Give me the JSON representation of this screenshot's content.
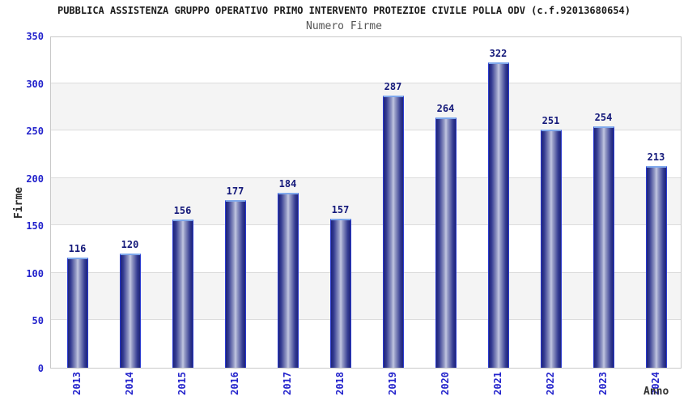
{
  "chart_data": {
    "type": "bar",
    "title": "PUBBLICA ASSISTENZA GRUPPO OPERATIVO PRIMO INTERVENTO PROTEZIOE CIVILE POLLA ODV (c.f.92013680654)",
    "subtitle": "Numero Firme",
    "categories": [
      "2013",
      "2014",
      "2015",
      "2016",
      "2017",
      "2018",
      "2019",
      "2020",
      "2021",
      "2022",
      "2023",
      "2024"
    ],
    "values": [
      116,
      120,
      156,
      177,
      184,
      157,
      287,
      264,
      322,
      251,
      254,
      213
    ],
    "xlabel": "Anno",
    "ylabel": "Firme",
    "ylim": [
      0,
      350
    ],
    "yticks": [
      0,
      50,
      100,
      150,
      200,
      250,
      300,
      350
    ],
    "grid": "horizontal gridlines every 50 with alternating gray bands (50-100, 150-200, 250-300)",
    "legend": "none",
    "value_labels_shown": true,
    "colors": {
      "bar_dark": "#1e2478",
      "bar_light": "#c2c7e2",
      "bar_border": "#2a3ad0",
      "bar_top_highlight": "#7fa8ec",
      "axis_tick_label": "#2323cc",
      "value_label": "#14197a",
      "band_gray": "#f4f4f4",
      "gridline": "#dcdcdc",
      "plot_border": "#c9c9c9",
      "title": "#1b1b1b",
      "subtitle": "#555555",
      "axis_title": "#2b2b2b"
    }
  }
}
